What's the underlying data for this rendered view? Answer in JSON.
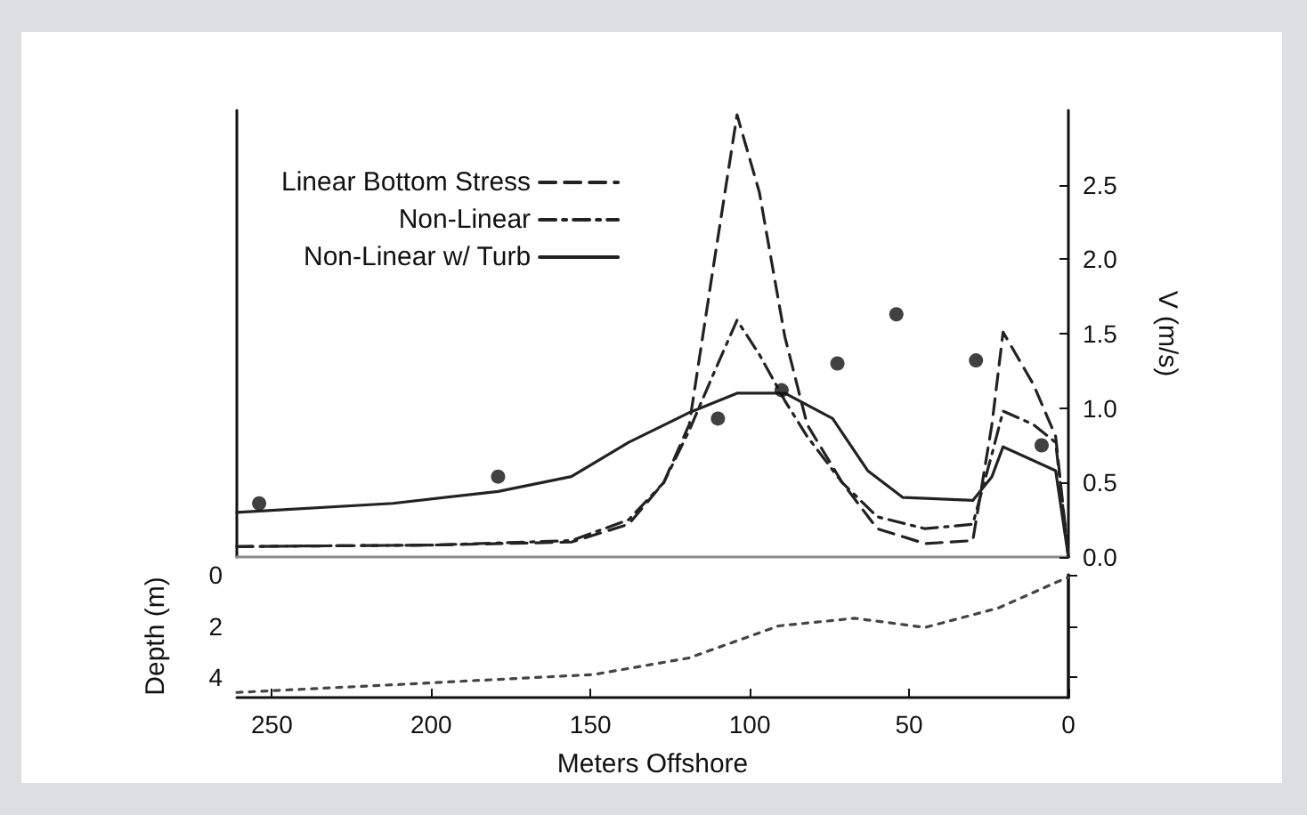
{
  "chart_data": [
    {
      "type": "line",
      "ylabel": "V (m/s)",
      "xlim": [
        261,
        0
      ],
      "ylim": [
        0,
        3
      ],
      "yticks": [
        {
          "value": 0,
          "label": "0.0"
        },
        {
          "value": 0.5,
          "label": "0.5"
        },
        {
          "value": 1,
          "label": "1.0"
        },
        {
          "value": 1.5,
          "label": "1.5"
        },
        {
          "value": 2,
          "label": "2.0"
        },
        {
          "value": 2.5,
          "label": "2.5"
        }
      ],
      "tick_labels": "y",
      "legend": "top left",
      "grid": false,
      "series": [
        {
          "name": "Linear Bottom Stress",
          "color": "#222222",
          "line_style": "dashed",
          "marker": "none",
          "x": [
            261,
            200,
            156,
            138,
            127,
            119,
            112,
            104,
            97,
            89,
            82,
            71,
            60,
            45,
            30,
            24,
            20.5,
            11,
            4,
            0
          ],
          "values": [
            0.07,
            0.08,
            0.1,
            0.22,
            0.5,
            0.89,
            1.87,
            2.97,
            2.45,
            1.48,
            0.89,
            0.5,
            0.19,
            0.09,
            0.11,
            0.89,
            1.51,
            1.16,
            0.81,
            0
          ]
        },
        {
          "name": "Non-Linear",
          "color": "#222222",
          "line_style": "dashdot",
          "marker": "none",
          "x": [
            261,
            200,
            156,
            138,
            127,
            119,
            112,
            104,
            97,
            89,
            82,
            71,
            60,
            45,
            30,
            24,
            20.5,
            11,
            4,
            0
          ],
          "values": [
            0.07,
            0.08,
            0.11,
            0.25,
            0.5,
            0.85,
            1.2,
            1.59,
            1.36,
            1.05,
            0.81,
            0.5,
            0.27,
            0.19,
            0.22,
            0.69,
            0.98,
            0.89,
            0.77,
            0
          ]
        },
        {
          "name": "Non-Linear w/ Turb",
          "color": "#222222",
          "line_style": "solid",
          "marker": "none",
          "x": [
            261,
            212,
            179,
            156,
            138,
            119,
            104,
            89,
            74,
            63,
            52,
            30,
            24,
            20.5,
            4,
            0
          ],
          "values": [
            0.3,
            0.36,
            0.44,
            0.54,
            0.77,
            0.97,
            1.1,
            1.1,
            0.93,
            0.58,
            0.4,
            0.38,
            0.54,
            0.74,
            0.58,
            0
          ]
        },
        {
          "type": "scatter",
          "color": "#111111",
          "marker": "circle",
          "x": [
            254,
            179,
            110,
            90,
            72.5,
            54,
            29,
            8.4
          ],
          "values": [
            0.36,
            0.54,
            0.93,
            1.12,
            1.3,
            1.63,
            1.32,
            0.75
          ]
        }
      ]
    },
    {
      "type": "line",
      "xlabel": "Meters Offshore",
      "ylabel": "Depth (m)",
      "xlim": [
        261,
        0
      ],
      "xticks": [
        250,
        200,
        150,
        100,
        50,
        0
      ],
      "ylim": [
        4.8,
        0
      ],
      "yticks": [
        0,
        2,
        4
      ],
      "grid": false,
      "series": [
        {
          "color": "#444444",
          "line_style": "dotted",
          "marker": "none",
          "x": [
            261,
            212,
            149,
            119,
            91,
            67,
            45,
            22,
            3,
            0
          ],
          "values": [
            4.6,
            4.3,
            3.9,
            3.25,
            2.0,
            1.7,
            2.06,
            1.3,
            0.25,
            0.1
          ]
        }
      ]
    }
  ]
}
